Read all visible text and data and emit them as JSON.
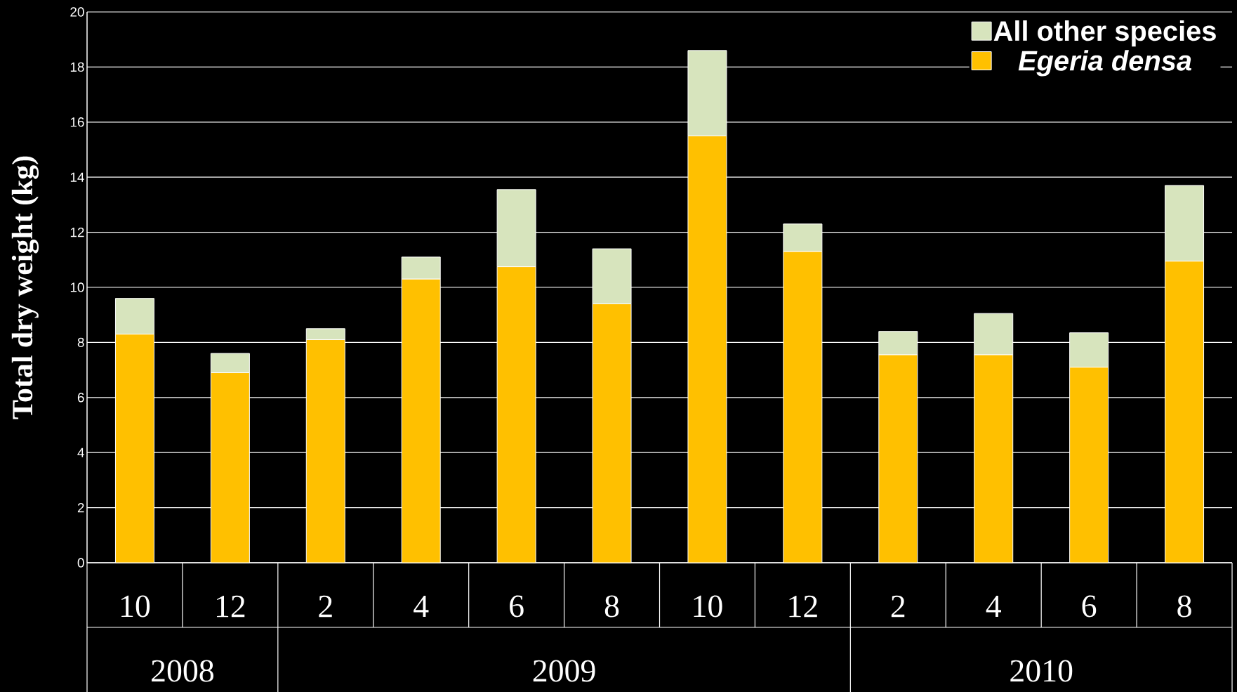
{
  "chart_data": {
    "type": "bar",
    "stacked": true,
    "ylabel": "Total dry weight (kg)",
    "categories": [
      "10",
      "12",
      "2",
      "4",
      "6",
      "8",
      "10",
      "12",
      "2",
      "4",
      "6",
      "8"
    ],
    "annotations": [
      "2008",
      "2009",
      "2010"
    ],
    "series": [
      {
        "name": "Egeria densa",
        "color": "#ffc000",
        "values": [
          8.3,
          6.9,
          8.1,
          10.3,
          10.75,
          9.4,
          15.5,
          11.3,
          7.55,
          7.55,
          7.1,
          10.95
        ]
      },
      {
        "name": "All other species",
        "color": "#d7e4bd",
        "values": [
          1.3,
          0.7,
          0.4,
          0.8,
          2.8,
          2.0,
          3.1,
          1.0,
          0.85,
          1.5,
          1.25,
          2.75
        ]
      }
    ],
    "ylim": [
      0,
      20
    ],
    "yticks": [
      0,
      2,
      4,
      6,
      8,
      10,
      12,
      14,
      16,
      18,
      20
    ],
    "grid": "y",
    "legend": "top right"
  }
}
